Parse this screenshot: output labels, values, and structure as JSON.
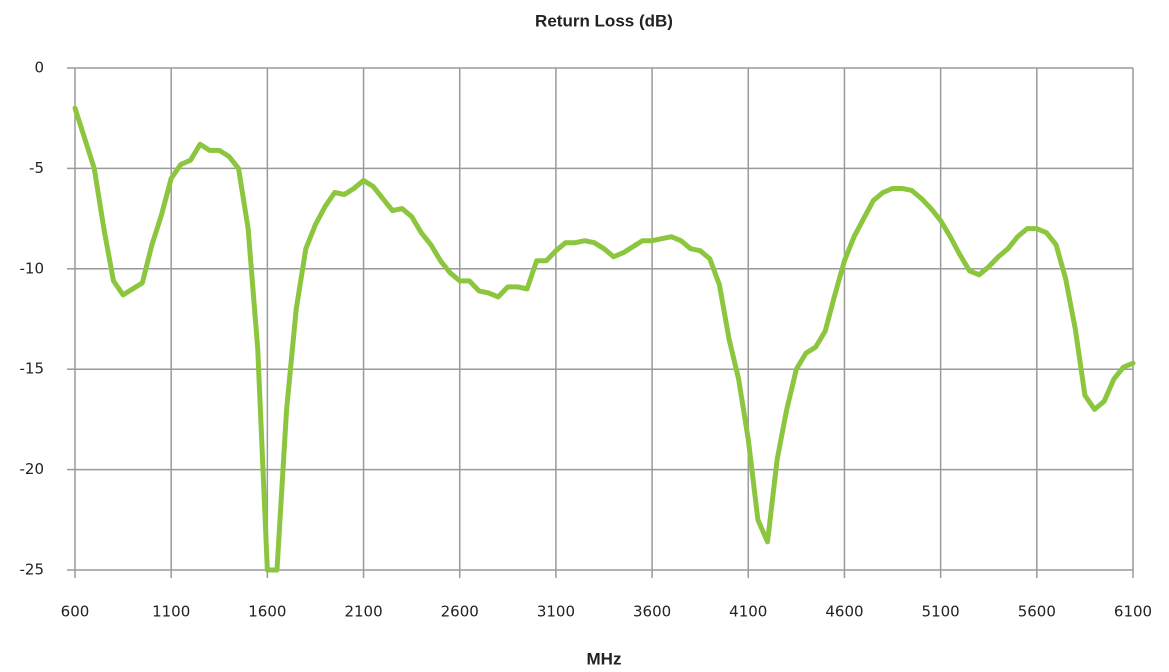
{
  "chart_data": {
    "type": "line",
    "title": "Return Loss (dB)",
    "x_label": "MHz",
    "x": [
      600,
      650,
      700,
      750,
      800,
      850,
      900,
      950,
      1000,
      1050,
      1100,
      1150,
      1200,
      1250,
      1300,
      1350,
      1400,
      1450,
      1500,
      1550,
      1600,
      1650,
      1700,
      1750,
      1800,
      1850,
      1900,
      1950,
      2000,
      2050,
      2100,
      2150,
      2200,
      2250,
      2300,
      2350,
      2400,
      2450,
      2500,
      2550,
      2600,
      2650,
      2700,
      2750,
      2800,
      2850,
      2900,
      2950,
      3000,
      3050,
      3100,
      3150,
      3200,
      3250,
      3300,
      3350,
      3400,
      3450,
      3500,
      3550,
      3600,
      3650,
      3700,
      3750,
      3800,
      3850,
      3900,
      3950,
      4000,
      4050,
      4100,
      4150,
      4200,
      4250,
      4300,
      4350,
      4400,
      4450,
      4500,
      4550,
      4600,
      4650,
      4700,
      4750,
      4800,
      4850,
      4900,
      4950,
      5000,
      5050,
      5100,
      5150,
      5200,
      5250,
      5300,
      5350,
      5400,
      5450,
      5500,
      5550,
      5600,
      5650,
      5700,
      5750,
      5800,
      5850,
      5900,
      5950,
      6000,
      6050,
      6100
    ],
    "series": [
      {
        "color": "#8cc63f",
        "values": [
          -2,
          -3.5,
          -5,
          -8,
          -10.6,
          -11.3,
          -11,
          -10.7,
          -8.8,
          -7.3,
          -5.5,
          -4.8,
          -4.6,
          -3.8,
          -4.1,
          -4.1,
          -4.4,
          -5,
          -8,
          -14,
          -25,
          -25,
          -17,
          -12,
          -9,
          -7.8,
          -6.9,
          -6.2,
          -6.3,
          -6,
          -5.6,
          -5.9,
          -6.5,
          -7.1,
          -7,
          -7.4,
          -8.2,
          -8.8,
          -9.6,
          -10.2,
          -10.6,
          -10.6,
          -11.1,
          -11.2,
          -11.4,
          -10.9,
          -10.9,
          -11,
          -9.6,
          -9.6,
          -9.1,
          -8.7,
          -8.7,
          -8.6,
          -8.7,
          -9,
          -9.4,
          -9.2,
          -8.9,
          -8.6,
          -8.6,
          -8.5,
          -8.4,
          -8.6,
          -9,
          -9.1,
          -9.5,
          -10.8,
          -13.5,
          -15.5,
          -18.5,
          -22.5,
          -23.6,
          -19.5,
          -17,
          -15,
          -14.2,
          -13.9,
          -13.1,
          -11.3,
          -9.6,
          -8.4,
          -7.5,
          -6.6,
          -6.2,
          -6,
          -6,
          -6.1,
          -6.5,
          -7,
          -7.6,
          -8.4,
          -9.3,
          -10.1,
          -10.3,
          -9.9,
          -9.4,
          -9,
          -8.4,
          -8,
          -8,
          -8.2,
          -8.8,
          -10.5,
          -13,
          -16.3,
          -17,
          -16.6,
          -15.5,
          -14.9,
          -14.7
        ]
      }
    ],
    "xlim": [
      600,
      6100
    ],
    "xticks": [
      600,
      1100,
      1600,
      2100,
      2600,
      3100,
      3600,
      4100,
      4600,
      5100,
      5600,
      6100
    ],
    "ylim": [
      -25,
      0
    ],
    "yticks": [
      0,
      -5,
      -10,
      -15,
      -20,
      -25
    ],
    "grid": true
  }
}
